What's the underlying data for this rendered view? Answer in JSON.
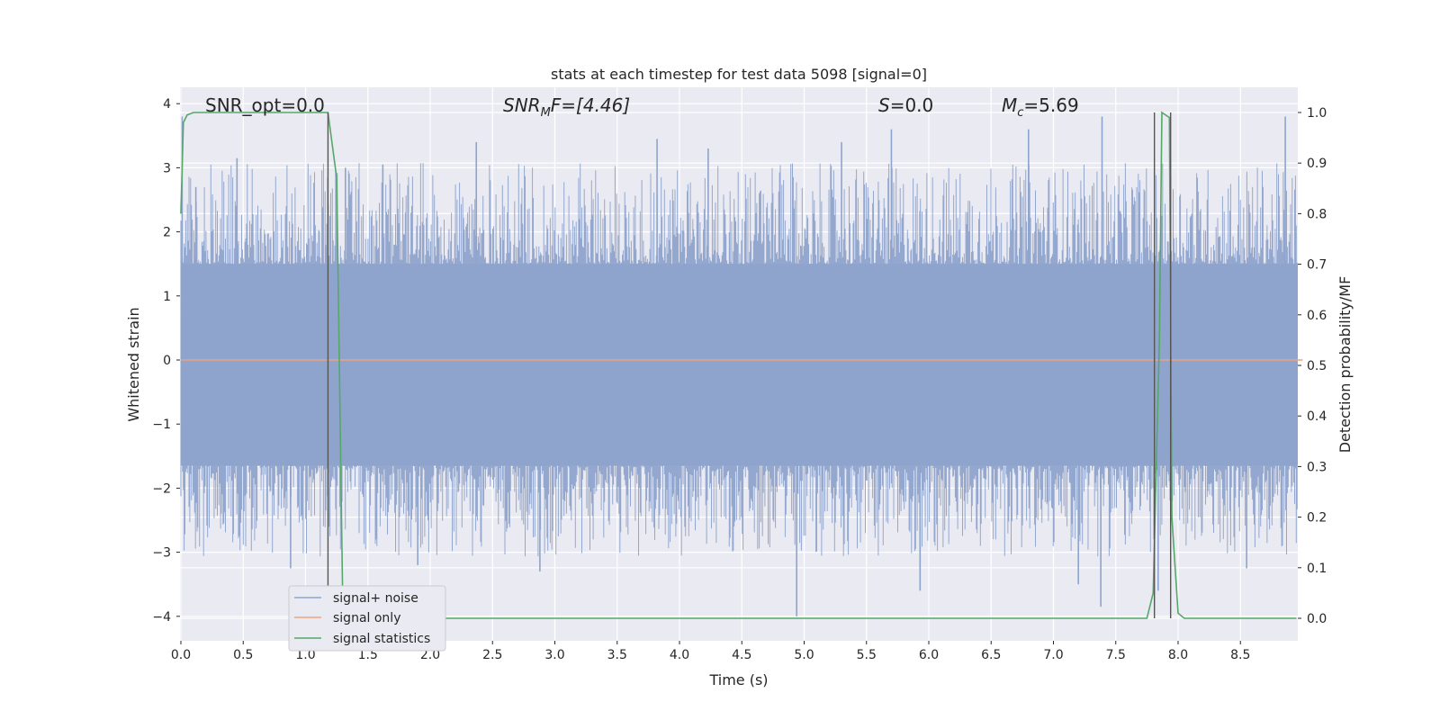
{
  "chart_data": {
    "type": "line",
    "title": "stats at each timestep for test data 5098 [signal=0]",
    "xlabel": "Time (s)",
    "ylabel": "Whitened strain",
    "ylabel_right": "Detection probability/MF",
    "xlim": [
      0,
      9.0
    ],
    "ylim": [
      -4.2,
      4.2
    ],
    "ylim_right": [
      -0.05,
      1.02
    ],
    "x_ticks": [
      "0.0",
      "0.5",
      "1.0",
      "1.5",
      "2.0",
      "2.5",
      "3.0",
      "3.5",
      "4.0",
      "4.5",
      "5.0",
      "5.5",
      "6.0",
      "6.5",
      "7.0",
      "7.5",
      "8.0",
      "8.5"
    ],
    "y_ticks": [
      "4",
      "3",
      "2",
      "1",
      "0",
      "−1",
      "−2",
      "−3",
      "−4"
    ],
    "y_ticks_right": [
      "1.0",
      "0.9",
      "0.8",
      "0.7",
      "0.6",
      "0.5",
      "0.4",
      "0.3",
      "0.2",
      "0.1",
      "0.0"
    ],
    "grid": true,
    "legend_position": "lower-left",
    "annotations": {
      "snr_opt": "SNR_opt=0.0",
      "snr_mf_main": "SNR",
      "snr_mf_sub": "M",
      "snr_mf_rest": "F=[4.46]",
      "s_main": "S",
      "s_rest": "=0.0",
      "mc_main": "M",
      "mc_sub": "c",
      "mc_rest": "=5.69"
    },
    "series": [
      {
        "name": "signal+ noise",
        "color": "#8fa4cc",
        "noise_band": {
          "core_low": -1.65,
          "core_high": 1.5,
          "typical_max": 3.0,
          "typical_min": -3.0
        },
        "peaks": [
          {
            "x": 0.12,
            "y": 2.7
          },
          {
            "x": 0.45,
            "y": 3.15
          },
          {
            "x": 0.88,
            "y": -3.25
          },
          {
            "x": 1.32,
            "y": 3.0
          },
          {
            "x": 1.62,
            "y": 3.05
          },
          {
            "x": 1.9,
            "y": -3.2
          },
          {
            "x": 2.37,
            "y": 3.4
          },
          {
            "x": 2.88,
            "y": -3.3
          },
          {
            "x": 3.82,
            "y": 3.45
          },
          {
            "x": 4.23,
            "y": 3.3
          },
          {
            "x": 4.94,
            "y": -4.0
          },
          {
            "x": 5.3,
            "y": 3.4
          },
          {
            "x": 5.7,
            "y": 3.6
          },
          {
            "x": 5.93,
            "y": -3.6
          },
          {
            "x": 6.8,
            "y": 3.6
          },
          {
            "x": 7.2,
            "y": -3.5
          },
          {
            "x": 7.39,
            "y": 3.8
          },
          {
            "x": 7.38,
            "y": -3.85
          },
          {
            "x": 7.84,
            "y": -3.6
          },
          {
            "x": 8.55,
            "y": -3.25
          },
          {
            "x": 8.86,
            "y": 3.8
          },
          {
            "x": 0.01,
            "y": 3.8
          }
        ]
      },
      {
        "name": "signal only",
        "color": "#e9a484",
        "x": [
          0.0,
          9.0
        ],
        "y": [
          0.0,
          0.0
        ]
      },
      {
        "name": "signal statistics",
        "color": "#55a868",
        "axis": "right",
        "x": [
          0.0,
          0.02,
          0.05,
          0.1,
          0.2,
          0.5,
          1.0,
          1.18,
          1.25,
          1.3,
          1.35,
          2.0,
          3.0,
          4.0,
          5.0,
          6.0,
          7.0,
          7.5,
          7.75,
          7.8,
          7.85,
          7.87,
          7.93,
          7.95,
          8.0,
          8.05,
          8.5,
          8.95
        ],
        "y": [
          0.8,
          0.98,
          0.995,
          1.0,
          1.0,
          1.0,
          1.0,
          1.0,
          0.87,
          0.0,
          0.0,
          0.0,
          0.0,
          0.0,
          0.0,
          0.0,
          0.0,
          0.0,
          0.0,
          0.05,
          0.55,
          1.0,
          0.99,
          0.2,
          0.01,
          0.0,
          0.0,
          0.0
        ]
      }
    ],
    "vertical_markers": [
      1.18,
      7.81,
      7.94
    ]
  }
}
